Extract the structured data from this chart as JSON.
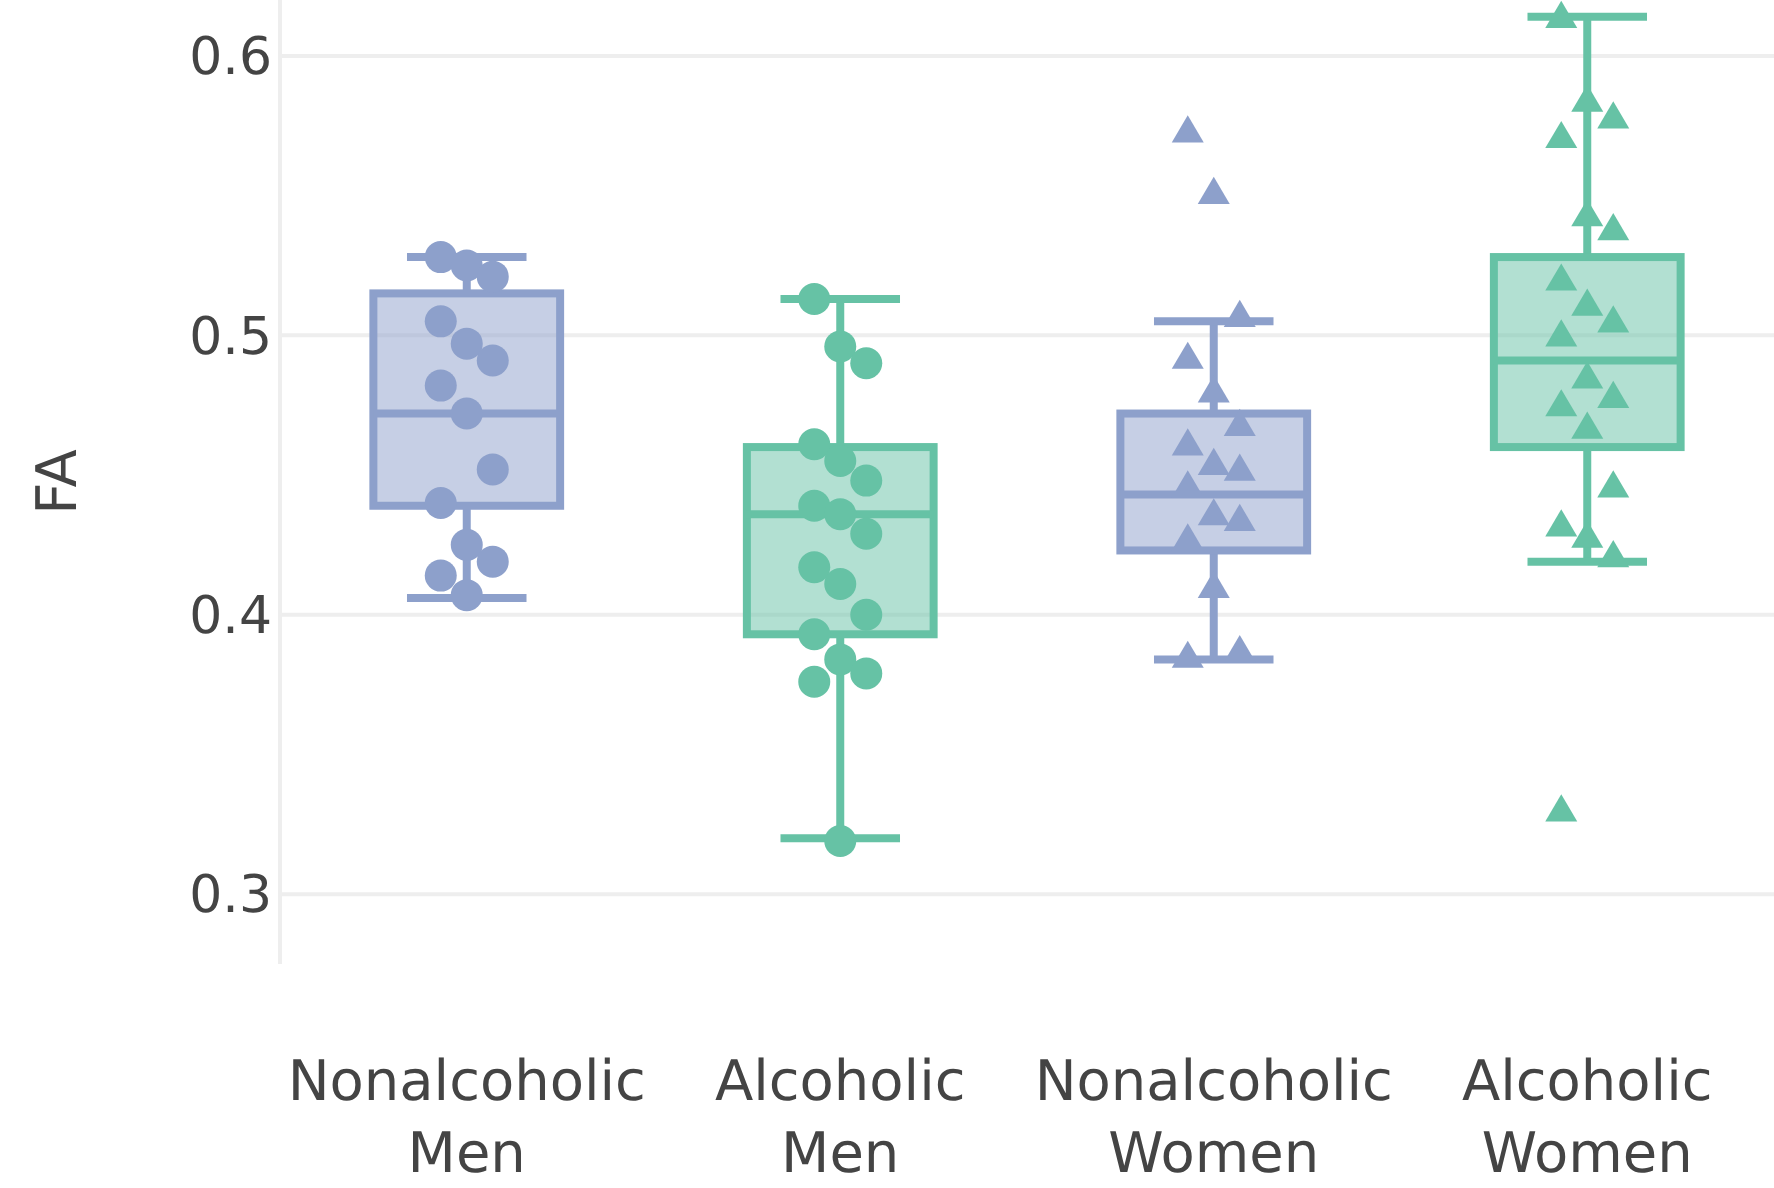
{
  "chart_data": {
    "type": "box",
    "ylabel": "FA",
    "categories": [
      "Nonalcoholic Men",
      "Alcoholic Men",
      "Nonalcoholic Women",
      "Alcoholic Women"
    ],
    "ylim": [
      0.275,
      0.62
    ],
    "yticks": [
      0.3,
      0.4,
      0.5,
      0.6
    ],
    "grid": "y",
    "series": [
      {
        "type": "box",
        "colors": [
          "#8da0cb",
          "#66c2a5",
          "#8da0cb",
          "#66c2a5"
        ],
        "boxes": [
          {
            "low": 0.406,
            "q1": 0.439,
            "median": 0.472,
            "q3": 0.515,
            "high": 0.528
          },
          {
            "low": 0.32,
            "q1": 0.393,
            "median": 0.436,
            "q3": 0.46,
            "high": 0.513
          },
          {
            "low": 0.384,
            "q1": 0.423,
            "median": 0.443,
            "q3": 0.472,
            "high": 0.505
          },
          {
            "low": 0.419,
            "q1": 0.46,
            "median": 0.491,
            "q3": 0.528,
            "high": 0.614
          }
        ]
      },
      {
        "type": "scatter",
        "color": "#8da0cb",
        "marker": "circle",
        "x": [
          "Nonalcoholic Men",
          "Nonalcoholic Men",
          "Nonalcoholic Men",
          "Nonalcoholic Men",
          "Nonalcoholic Men",
          "Nonalcoholic Men",
          "Nonalcoholic Men",
          "Nonalcoholic Men",
          "Nonalcoholic Men",
          "Nonalcoholic Men",
          "Nonalcoholic Men",
          "Nonalcoholic Men",
          "Nonalcoholic Men",
          "Nonalcoholic Men"
        ],
        "values": [
          0.528,
          0.525,
          0.521,
          0.505,
          0.497,
          0.491,
          0.482,
          0.472,
          0.452,
          0.44,
          0.425,
          0.419,
          0.414,
          0.407
        ]
      },
      {
        "type": "scatter",
        "color": "#66c2a5",
        "marker": "circle",
        "x": [
          "Alcoholic Men",
          "Alcoholic Men",
          "Alcoholic Men",
          "Alcoholic Men",
          "Alcoholic Men",
          "Alcoholic Men",
          "Alcoholic Men",
          "Alcoholic Men",
          "Alcoholic Men",
          "Alcoholic Men",
          "Alcoholic Men",
          "Alcoholic Men",
          "Alcoholic Men",
          "Alcoholic Men",
          "Alcoholic Men",
          "Alcoholic Men",
          "Alcoholic Men"
        ],
        "values": [
          0.513,
          0.496,
          0.49,
          0.461,
          0.455,
          0.448,
          0.439,
          0.436,
          0.429,
          0.417,
          0.411,
          0.4,
          0.393,
          0.384,
          0.379,
          0.376,
          0.319
        ]
      },
      {
        "type": "scatter",
        "color": "#8da0cb",
        "marker": "triangle",
        "x": [
          "Nonalcoholic Women",
          "Nonalcoholic Women",
          "Nonalcoholic Women",
          "Nonalcoholic Women",
          "Nonalcoholic Women",
          "Nonalcoholic Women",
          "Nonalcoholic Women",
          "Nonalcoholic Women",
          "Nonalcoholic Women",
          "Nonalcoholic Women",
          "Nonalcoholic Women",
          "Nonalcoholic Women",
          "Nonalcoholic Women",
          "Nonalcoholic Women",
          "Nonalcoholic Women",
          "Nonalcoholic Women"
        ],
        "values": [
          0.573,
          0.551,
          0.507,
          0.492,
          0.48,
          0.468,
          0.461,
          0.454,
          0.452,
          0.446,
          0.436,
          0.434,
          0.427,
          0.41,
          0.387,
          0.385
        ]
      },
      {
        "type": "scatter",
        "color": "#66c2a5",
        "marker": "triangle",
        "x": [
          "Alcoholic Women",
          "Alcoholic Women",
          "Alcoholic Women",
          "Alcoholic Women",
          "Alcoholic Women",
          "Alcoholic Women",
          "Alcoholic Women",
          "Alcoholic Women",
          "Alcoholic Women",
          "Alcoholic Women",
          "Alcoholic Women",
          "Alcoholic Women",
          "Alcoholic Women",
          "Alcoholic Women",
          "Alcoholic Women",
          "Alcoholic Women",
          "Alcoholic Women",
          "Alcoholic Women",
          "Alcoholic Women"
        ],
        "values": [
          0.614,
          0.584,
          0.578,
          0.571,
          0.543,
          0.538,
          0.52,
          0.511,
          0.505,
          0.5,
          0.485,
          0.478,
          0.475,
          0.467,
          0.446,
          0.432,
          0.428,
          0.421,
          0.33
        ]
      }
    ]
  }
}
